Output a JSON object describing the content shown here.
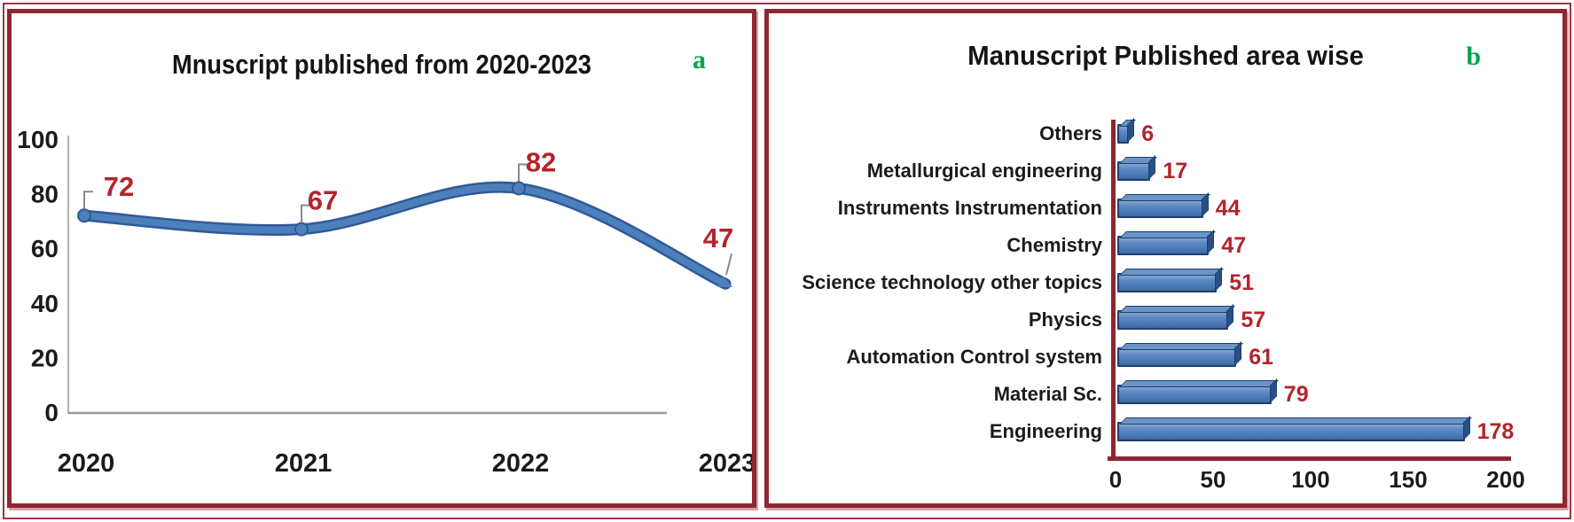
{
  "figure": {
    "panels": [
      {
        "label": "a",
        "kind": "line-chart"
      },
      {
        "label": "b",
        "kind": "bar-chart"
      }
    ],
    "colors": {
      "panel_border": "#8e2633",
      "outer_frame": "#a03540",
      "letter_green": "#00a550",
      "line_blue": "#4d7fbd",
      "line_blue_dark": "#2f5a96",
      "bar_fill": "#4f81bd",
      "bar_outline": "#1d3f6e",
      "value_label_red": "#b5232b",
      "axis_gray": "#9a9a9a",
      "text_black": "#1b1b1b"
    }
  },
  "chart_data": [
    {
      "type": "line",
      "title": "Mnuscript published from 2020-2023",
      "panel_label": "a",
      "categories": [
        "2020",
        "2021",
        "2022",
        "2023"
      ],
      "values": [
        72,
        67,
        82,
        47
      ],
      "data_labels": [
        "72",
        "67",
        "82",
        "47"
      ],
      "yticks": [
        100,
        80,
        60,
        40,
        20,
        0
      ],
      "ylim": [
        0,
        100
      ],
      "xlabel": "",
      "ylabel": "",
      "grid": "off",
      "legend": "none",
      "marker": "circle",
      "line_end": "arrow"
    },
    {
      "type": "bar",
      "title": "Manuscript Published area wise",
      "panel_label": "b",
      "orientation": "horizontal",
      "categories": [
        "Others",
        "Metallurgical engineering",
        "Instruments Instrumentation",
        "Chemistry",
        "Science technology other topics",
        "Physics",
        "Automation Control system",
        "Material Sc.",
        "Engineering"
      ],
      "values": [
        6,
        17,
        44,
        47,
        51,
        57,
        61,
        79,
        178
      ],
      "data_labels": [
        "6",
        "17",
        "44",
        "47",
        "51",
        "57",
        "61",
        "79",
        "178"
      ],
      "xticks": [
        0,
        50,
        100,
        150,
        200
      ],
      "xlim": [
        0,
        205
      ],
      "xlabel": "",
      "ylabel": "",
      "grid": "off",
      "legend": "none",
      "bar_style": "3d-bevel"
    }
  ]
}
